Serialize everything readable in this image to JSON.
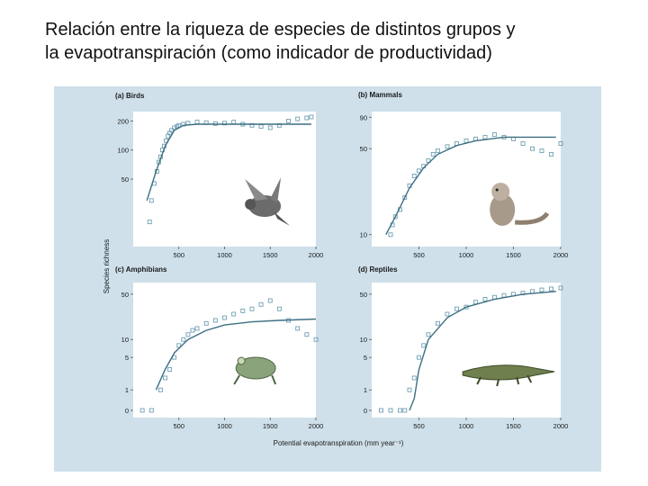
{
  "slide": {
    "title_line1": "Relación entre la riqueza de especies de distintos grupos y",
    "title_line2": "la evapotranspiración (como indicador de productividad)"
  },
  "figure": {
    "shared_ylabel": "Species richness",
    "shared_xlabel": "Potential evapotranspiration (mm year⁻¹)",
    "colors": {
      "background": "#cfe0ea",
      "plot_bg": "#ffffff",
      "marker": "#6f9fb4",
      "curve": "#3c6f82",
      "text": "#1a1a1a"
    }
  },
  "chart_data": [
    {
      "type": "scatter",
      "panel": "top-left",
      "title": "(a) Birds",
      "icon": "bird-icon",
      "xticks": [
        500,
        1000,
        1500,
        2000
      ],
      "yticks": [
        50,
        100,
        200
      ],
      "xlim": [
        0,
        2000
      ],
      "ylim": [
        10,
        250
      ],
      "yscale": "log",
      "points": [
        [
          180,
          18
        ],
        [
          200,
          30
        ],
        [
          230,
          45
        ],
        [
          260,
          60
        ],
        [
          280,
          75
        ],
        [
          300,
          85
        ],
        [
          320,
          100
        ],
        [
          340,
          110
        ],
        [
          360,
          125
        ],
        [
          380,
          140
        ],
        [
          400,
          150
        ],
        [
          420,
          160
        ],
        [
          450,
          170
        ],
        [
          480,
          175
        ],
        [
          500,
          180
        ],
        [
          550,
          185
        ],
        [
          600,
          190
        ],
        [
          700,
          195
        ],
        [
          800,
          192
        ],
        [
          900,
          188
        ],
        [
          1000,
          190
        ],
        [
          1100,
          195
        ],
        [
          1200,
          185
        ],
        [
          1300,
          180
        ],
        [
          1400,
          175
        ],
        [
          1500,
          170
        ],
        [
          1600,
          180
        ],
        [
          1700,
          200
        ],
        [
          1800,
          210
        ],
        [
          1900,
          215
        ],
        [
          1950,
          220
        ]
      ],
      "curve": [
        [
          150,
          30
        ],
        [
          250,
          60
        ],
        [
          350,
          110
        ],
        [
          450,
          160
        ],
        [
          550,
          180
        ],
        [
          700,
          185
        ],
        [
          1000,
          185
        ],
        [
          1500,
          185
        ],
        [
          1950,
          185
        ]
      ]
    },
    {
      "type": "scatter",
      "panel": "top-right",
      "title": "(b) Mammals",
      "icon": "squirrel-icon",
      "xticks": [
        500,
        1000,
        1500,
        2000
      ],
      "yticks": [
        10,
        50,
        90
      ],
      "xlim": [
        0,
        2000
      ],
      "ylim": [
        8,
        100
      ],
      "yscale": "log",
      "points": [
        [
          200,
          10
        ],
        [
          220,
          12
        ],
        [
          250,
          14
        ],
        [
          300,
          16
        ],
        [
          350,
          20
        ],
        [
          400,
          25
        ],
        [
          450,
          30
        ],
        [
          500,
          33
        ],
        [
          550,
          36
        ],
        [
          600,
          40
        ],
        [
          650,
          45
        ],
        [
          700,
          48
        ],
        [
          800,
          52
        ],
        [
          900,
          55
        ],
        [
          1000,
          58
        ],
        [
          1100,
          60
        ],
        [
          1200,
          62
        ],
        [
          1300,
          65
        ],
        [
          1400,
          62
        ],
        [
          1500,
          60
        ],
        [
          1600,
          55
        ],
        [
          1700,
          50
        ],
        [
          1800,
          48
        ],
        [
          1900,
          45
        ],
        [
          2000,
          55
        ]
      ],
      "curve": [
        [
          150,
          10
        ],
        [
          250,
          14
        ],
        [
          400,
          24
        ],
        [
          550,
          35
        ],
        [
          700,
          45
        ],
        [
          900,
          53
        ],
        [
          1100,
          58
        ],
        [
          1400,
          62
        ],
        [
          1950,
          62
        ]
      ]
    },
    {
      "type": "scatter",
      "panel": "bottom-left",
      "title": "(c) Amphibians",
      "icon": "frog-icon",
      "xticks": [
        500,
        1000,
        1500,
        2000
      ],
      "yticks": [
        0,
        1,
        5,
        10,
        50
      ],
      "xlim": [
        0,
        2000
      ],
      "ylim": [
        0,
        70
      ],
      "yscale": "symlog",
      "points": [
        [
          100,
          0
        ],
        [
          200,
          0
        ],
        [
          300,
          1
        ],
        [
          350,
          2
        ],
        [
          400,
          3
        ],
        [
          450,
          5
        ],
        [
          500,
          8
        ],
        [
          550,
          10
        ],
        [
          600,
          12
        ],
        [
          650,
          14
        ],
        [
          700,
          15
        ],
        [
          800,
          18
        ],
        [
          900,
          20
        ],
        [
          1000,
          22
        ],
        [
          1100,
          25
        ],
        [
          1200,
          28
        ],
        [
          1300,
          30
        ],
        [
          1400,
          35
        ],
        [
          1500,
          40
        ],
        [
          1600,
          30
        ],
        [
          1700,
          20
        ],
        [
          1800,
          15
        ],
        [
          1900,
          12
        ],
        [
          2000,
          10
        ]
      ],
      "curve": [
        [
          250,
          1
        ],
        [
          350,
          3
        ],
        [
          450,
          6
        ],
        [
          600,
          10
        ],
        [
          800,
          14
        ],
        [
          1000,
          17
        ],
        [
          1300,
          19
        ],
        [
          1600,
          20
        ],
        [
          2000,
          21
        ]
      ]
    },
    {
      "type": "scatter",
      "panel": "bottom-right",
      "title": "(d) Reptiles",
      "icon": "crocodile-icon",
      "xticks": [
        500,
        1000,
        1500,
        2000
      ],
      "yticks": [
        0,
        1,
        5,
        10,
        50
      ],
      "xlim": [
        0,
        2000
      ],
      "ylim": [
        0,
        70
      ],
      "yscale": "symlog",
      "points": [
        [
          100,
          0
        ],
        [
          200,
          0
        ],
        [
          300,
          0
        ],
        [
          350,
          0
        ],
        [
          400,
          1
        ],
        [
          450,
          2
        ],
        [
          500,
          5
        ],
        [
          550,
          8
        ],
        [
          600,
          12
        ],
        [
          700,
          18
        ],
        [
          800,
          25
        ],
        [
          900,
          30
        ],
        [
          1000,
          32
        ],
        [
          1100,
          38
        ],
        [
          1200,
          42
        ],
        [
          1300,
          45
        ],
        [
          1400,
          48
        ],
        [
          1500,
          50
        ],
        [
          1600,
          52
        ],
        [
          1700,
          55
        ],
        [
          1800,
          58
        ],
        [
          1900,
          60
        ],
        [
          2000,
          62
        ]
      ],
      "curve": [
        [
          400,
          0
        ],
        [
          450,
          0.5
        ],
        [
          500,
          3
        ],
        [
          600,
          10
        ],
        [
          800,
          22
        ],
        [
          1000,
          32
        ],
        [
          1300,
          42
        ],
        [
          1600,
          50
        ],
        [
          1950,
          55
        ]
      ]
    }
  ]
}
